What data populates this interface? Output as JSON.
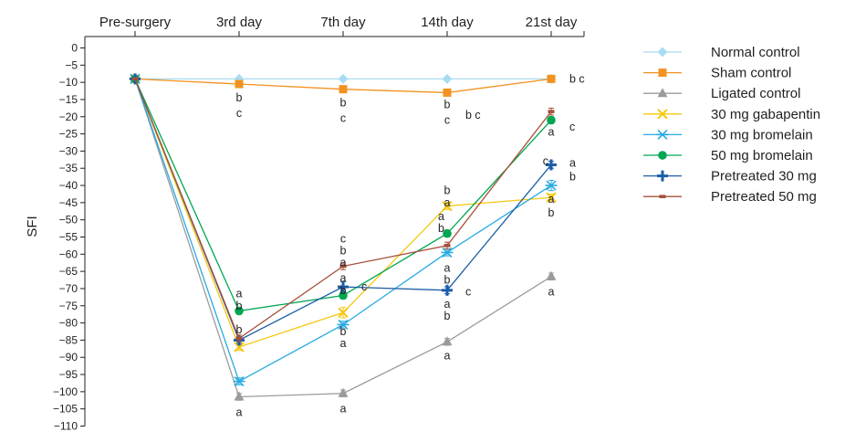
{
  "chart_data": {
    "type": "line",
    "title": "",
    "xlabel": "",
    "ylabel": "SFI",
    "ylim": [
      -110,
      0
    ],
    "yticks": [
      0,
      -5,
      -10,
      -15,
      -20,
      -25,
      -30,
      -35,
      -40,
      -45,
      -50,
      -55,
      -60,
      -65,
      -70,
      -75,
      -80,
      -85,
      -90,
      -95,
      -100,
      -105,
      -110
    ],
    "categories": [
      "Pre-surgery",
      "3rd day",
      "7th day",
      "14th day",
      "21st day"
    ],
    "x_axis_position": "top",
    "grid": false,
    "legend_position": "right",
    "series": [
      {
        "name": "Normal control",
        "color": "#a9dcf2",
        "marker": "diamond",
        "values": [
          -9,
          -9,
          -9,
          -9,
          -9
        ],
        "errors": [
          0,
          0,
          0,
          0,
          0
        ]
      },
      {
        "name": "Sham control",
        "color": "#f39220",
        "marker": "square",
        "values": [
          -9,
          -10.5,
          -12,
          -13,
          -9
        ],
        "errors": [
          0,
          0,
          0,
          0,
          0
        ]
      },
      {
        "name": "Ligated control",
        "color": "#9b9b9b",
        "marker": "triangle",
        "values": [
          -9,
          -101.5,
          -100.5,
          -85.5,
          -66.5
        ],
        "errors": [
          0,
          1,
          1,
          1,
          1
        ]
      },
      {
        "name": "30 mg gabapentin",
        "color": "#f6c711",
        "marker": "x",
        "values": [
          -9,
          -87,
          -77,
          -46,
          -43.5
        ],
        "errors": [
          0,
          1,
          1.5,
          1,
          1
        ]
      },
      {
        "name": "30 mg bromelain",
        "color": "#27aae1",
        "marker": "asterisk",
        "values": [
          -9,
          -97,
          -80.5,
          -59.5,
          -40
        ],
        "errors": [
          0,
          1,
          1,
          1,
          1.5
        ]
      },
      {
        "name": "50 mg bromelain",
        "color": "#00a651",
        "marker": "circle",
        "values": [
          -9,
          -76.5,
          -72,
          -54,
          -21
        ],
        "errors": [
          0,
          1,
          1,
          1,
          1
        ]
      },
      {
        "name": "Pretreated 30 mg",
        "color": "#1c5ea8",
        "marker": "plus",
        "values": [
          -9,
          -85,
          -69.5,
          -70.5,
          -34
        ],
        "errors": [
          0,
          1,
          1.5,
          1,
          1
        ]
      },
      {
        "name": "Pretreated 50 mg",
        "color": "#a5503a",
        "marker": "dash",
        "values": [
          -9,
          -84.5,
          -63.5,
          -57.5,
          -18.5
        ],
        "errors": [
          0,
          1,
          1,
          1,
          1
        ]
      }
    ],
    "annotations": [
      {
        "text": "b c",
        "cat": 4,
        "y": -9,
        "side": "right"
      },
      {
        "text": "b",
        "cat": 1,
        "y": -14.5
      },
      {
        "text": "c",
        "cat": 1,
        "y": -19
      },
      {
        "text": "b",
        "cat": 2,
        "y": -16
      },
      {
        "text": "c",
        "cat": 2,
        "y": -20.5
      },
      {
        "text": "b",
        "cat": 3,
        "y": -16.5
      },
      {
        "text": "c",
        "cat": 3,
        "y": -21
      },
      {
        "text": "b c",
        "cat": 3,
        "y": -19.5,
        "side": "right"
      },
      {
        "text": "a",
        "cat": 4,
        "y": -24.5
      },
      {
        "text": "c",
        "cat": 4,
        "y": -23,
        "side": "right"
      },
      {
        "text": "c",
        "cat": 4,
        "y": -33,
        "side": "left"
      },
      {
        "text": "a",
        "cat": 4,
        "y": -33.5,
        "side": "right"
      },
      {
        "text": "b",
        "cat": 4,
        "y": -37.5,
        "side": "right"
      },
      {
        "text": "a",
        "cat": 4,
        "y": -44
      },
      {
        "text": "b",
        "cat": 4,
        "y": -48
      },
      {
        "text": "a",
        "cat": 4,
        "y": -71
      },
      {
        "text": "b",
        "cat": 3,
        "y": -41.5
      },
      {
        "text": "a",
        "cat": 3,
        "y": -45
      },
      {
        "text": "a",
        "cat": 3,
        "y": -49,
        "side": "left"
      },
      {
        "text": "b",
        "cat": 3,
        "y": -52.5,
        "side": "left"
      },
      {
        "text": "a",
        "cat": 3,
        "y": -64
      },
      {
        "text": "b",
        "cat": 3,
        "y": -67.5
      },
      {
        "text": "a",
        "cat": 3,
        "y": -74.5
      },
      {
        "text": "b",
        "cat": 3,
        "y": -78
      },
      {
        "text": "c",
        "cat": 3,
        "y": -71,
        "side": "right"
      },
      {
        "text": "a",
        "cat": 3,
        "y": -89.5
      },
      {
        "text": "c",
        "cat": 2,
        "y": -55.5
      },
      {
        "text": "b",
        "cat": 2,
        "y": -59
      },
      {
        "text": "a",
        "cat": 2,
        "y": -62.5
      },
      {
        "text": "a",
        "cat": 2,
        "y": -67
      },
      {
        "text": "b",
        "cat": 2,
        "y": -70.5
      },
      {
        "text": "c",
        "cat": 2,
        "y": -69.5,
        "side": "right"
      },
      {
        "text": "b",
        "cat": 2,
        "y": -82.5
      },
      {
        "text": "a",
        "cat": 2,
        "y": -86
      },
      {
        "text": "a",
        "cat": 2,
        "y": -105
      },
      {
        "text": "a",
        "cat": 1,
        "y": -71.5
      },
      {
        "text": "b",
        "cat": 1,
        "y": -75
      },
      {
        "text": "b",
        "cat": 1,
        "y": -82
      },
      {
        "text": "a",
        "cat": 1,
        "y": -106
      }
    ]
  }
}
